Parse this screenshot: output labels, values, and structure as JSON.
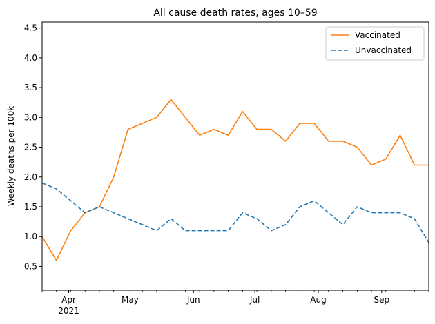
{
  "chart_data": {
    "type": "line",
    "title": "All cause death rates, ages 10–59",
    "xlabel": "",
    "ylabel": "Weekly deaths per 100k",
    "x_start": "2021-03-19",
    "x": [
      "2021-03-19",
      "2021-03-26",
      "2021-04-02",
      "2021-04-09",
      "2021-04-16",
      "2021-04-23",
      "2021-04-30",
      "2021-05-07",
      "2021-05-14",
      "2021-05-21",
      "2021-05-28",
      "2021-06-04",
      "2021-06-11",
      "2021-06-18",
      "2021-06-25",
      "2021-07-02",
      "2021-07-09",
      "2021-07-16",
      "2021-07-23",
      "2021-07-30",
      "2021-08-06",
      "2021-08-13",
      "2021-08-20",
      "2021-08-27",
      "2021-09-03",
      "2021-09-10",
      "2021-09-17",
      "2021-09-24"
    ],
    "xlim": [
      "2021-03-19",
      "2021-09-24"
    ],
    "ylim": [
      0.1,
      4.6
    ],
    "yticks": [
      0.5,
      1.0,
      1.5,
      2.0,
      2.5,
      3.0,
      3.5,
      4.0,
      4.5
    ],
    "ytick_labels": [
      "0.5",
      "1.0",
      "1.5",
      "2.0",
      "2.5",
      "3.0",
      "3.5",
      "4.0",
      "4.5"
    ],
    "xticks": [
      "2021-04-01",
      "2021-05-01",
      "2021-06-01",
      "2021-07-01",
      "2021-08-01",
      "2021-09-01"
    ],
    "xtick_labels": [
      "Apr",
      "May",
      "Jun",
      "Jul",
      "Aug",
      "Sep"
    ],
    "xtick_sublabel": "2021",
    "grid": false,
    "legend_position": "top-right",
    "series": [
      {
        "name": "Vaccinated",
        "color": "#ff7f0e",
        "linestyle": "solid",
        "values": [
          1.0,
          0.6,
          1.1,
          1.4,
          1.5,
          2.0,
          2.8,
          2.9,
          3.0,
          3.3,
          3.0,
          2.7,
          2.8,
          2.7,
          3.1,
          2.8,
          2.8,
          2.6,
          2.9,
          2.9,
          2.6,
          2.6,
          2.5,
          2.2,
          2.3,
          2.7,
          2.2,
          2.2
        ]
      },
      {
        "name": "Unvaccinated",
        "color": "#1f77b4",
        "linestyle": "dashed",
        "values": [
          1.9,
          1.8,
          1.6,
          1.4,
          1.5,
          1.4,
          1.3,
          1.2,
          1.1,
          1.3,
          1.1,
          1.1,
          1.1,
          1.1,
          1.4,
          1.3,
          1.1,
          1.2,
          1.5,
          1.6,
          1.4,
          1.2,
          1.5,
          1.4,
          1.4,
          1.4,
          1.3,
          0.9
        ]
      }
    ]
  }
}
